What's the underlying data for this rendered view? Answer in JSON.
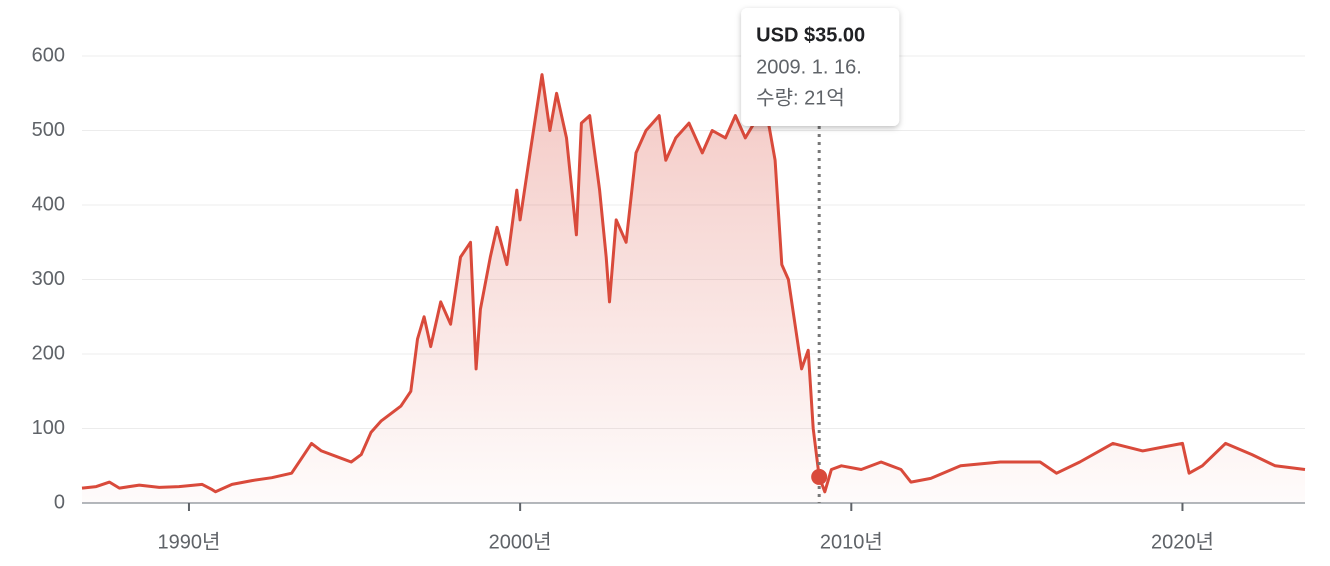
{
  "chart_data": {
    "type": "line",
    "x": [
      1986.77,
      1987.2,
      1987.6,
      1987.9,
      1988.5,
      1989.1,
      1989.7,
      1990.4,
      1990.7,
      1990.8,
      1991.3,
      1991.9,
      1992.5,
      1993.1,
      1993.4,
      1993.7,
      1994.0,
      1994.6,
      1994.9,
      1995.2,
      1995.5,
      1995.8,
      1996.1,
      1996.4,
      1996.7,
      1996.9,
      1997.1,
      1997.3,
      1997.6,
      1997.9,
      1998.2,
      1998.5,
      1998.67,
      1998.8,
      1999.1,
      1999.3,
      1999.6,
      1999.9,
      2000.0,
      2000.3,
      2000.66,
      2000.9,
      2001.1,
      2001.4,
      2001.7,
      2001.85,
      2002.1,
      2002.4,
      2002.6,
      2002.7,
      2002.9,
      2003.2,
      2003.5,
      2003.8,
      2004.2,
      2004.4,
      2004.7,
      2005.1,
      2005.5,
      2005.8,
      2006.2,
      2006.5,
      2006.8,
      2007.2,
      2007.5,
      2007.7,
      2007.9,
      2008.1,
      2008.3,
      2008.5,
      2008.7,
      2008.85,
      2009.03,
      2009.2,
      2009.4,
      2009.7,
      2010.3,
      2010.9,
      2011.5,
      2011.8,
      2012.4,
      2013.3,
      2014.5,
      2015.7,
      2016.2,
      2016.9,
      2017.9,
      2018.8,
      2019.4,
      2020.0,
      2020.2,
      2020.6,
      2021.3,
      2022.1,
      2022.8,
      2023.7
    ],
    "series": [
      {
        "color": "#d94a3b",
        "values": [
          20,
          22,
          28,
          20,
          24,
          21,
          22,
          25,
          18,
          15,
          25,
          30,
          34,
          40,
          60,
          80,
          70,
          60,
          55,
          65,
          95,
          110,
          120,
          130,
          150,
          220,
          250,
          210,
          270,
          240,
          330,
          350,
          180,
          260,
          330,
          370,
          320,
          420,
          380,
          470,
          575,
          500,
          550,
          490,
          360,
          510,
          520,
          420,
          330,
          270,
          380,
          350,
          470,
          500,
          520,
          460,
          490,
          510,
          470,
          500,
          490,
          520,
          490,
          520,
          510,
          460,
          320,
          300,
          240,
          180,
          205,
          100,
          35,
          15,
          45,
          50,
          45,
          55,
          45,
          28,
          33,
          50,
          55,
          55,
          40,
          55,
          80,
          70,
          75,
          80,
          40,
          50,
          80,
          65,
          50,
          45
        ]
      }
    ],
    "xlim": [
      1986.77,
      2023.7
    ],
    "ylim": [
      0,
      600
    ],
    "yticks": [
      0,
      100,
      200,
      300,
      400,
      500,
      600
    ],
    "xticks": [
      {
        "value": 1990,
        "label": "1990년"
      },
      {
        "value": 2000,
        "label": "2000년"
      },
      {
        "value": 2010,
        "label": "2010년"
      },
      {
        "value": 2020,
        "label": "2020년"
      }
    ],
    "grid": true,
    "tooltip": {
      "value": 35,
      "value_label": "USD $35.00",
      "date": "2009. 1. 16.",
      "volume": "수량: 21억"
    }
  }
}
